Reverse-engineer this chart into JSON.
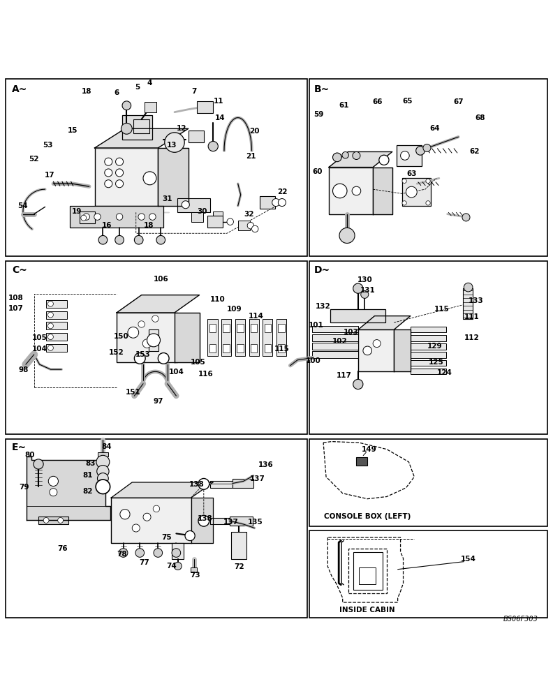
{
  "bg_color": "#ffffff",
  "footer": "BS06F303",
  "panel_label_fs": 10,
  "annot_fs": 7.5,
  "console_box_label": "CONSOLE BOX (LEFT)",
  "inside_cabin_label": "INSIDE CABIN",
  "panels": {
    "A": [
      0.008,
      0.668,
      0.548,
      0.322
    ],
    "B": [
      0.56,
      0.668,
      0.432,
      0.322
    ],
    "C": [
      0.008,
      0.345,
      0.548,
      0.315
    ],
    "D": [
      0.56,
      0.345,
      0.432,
      0.315
    ],
    "E": [
      0.008,
      0.012,
      0.548,
      0.325
    ],
    "F1": [
      0.56,
      0.178,
      0.432,
      0.159
    ],
    "F2": [
      0.56,
      0.012,
      0.432,
      0.158
    ]
  }
}
